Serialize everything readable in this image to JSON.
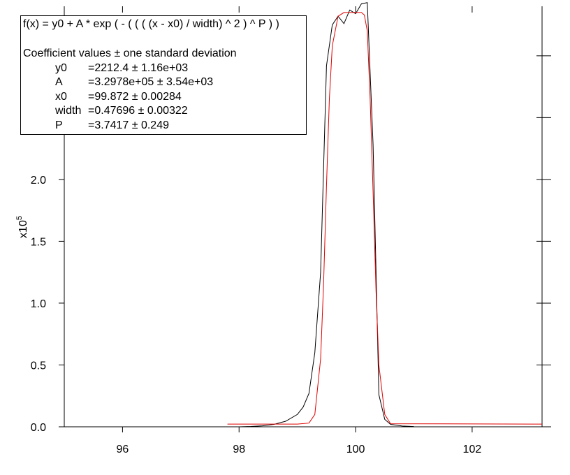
{
  "chart_data": {
    "type": "line",
    "title": "",
    "xlabel": "",
    "ylabel": "",
    "y_multiplier_label": "x10",
    "y_multiplier_exponent": "5",
    "xlim": [
      95.0,
      103.2
    ],
    "ylim": [
      0.0,
      3.4
    ],
    "x_ticks": [
      96,
      98,
      100,
      102
    ],
    "x_tick_labels": [
      "96",
      "98",
      "100",
      "102"
    ],
    "y_ticks": [
      0.0,
      0.5,
      1.0,
      1.5,
      2.0,
      2.5
    ],
    "y_tick_labels": [
      "0.0",
      "0.5",
      "1.0",
      "1.5",
      "2.0",
      "2.5"
    ],
    "grid": false,
    "series": [
      {
        "color": "#000000",
        "x": [
          98.0,
          98.2,
          98.4,
          98.6,
          98.8,
          99.0,
          99.1,
          99.2,
          99.3,
          99.4,
          99.5,
          99.6,
          99.7,
          99.8,
          99.9,
          100.0,
          100.1,
          100.2,
          100.3,
          100.4,
          100.5,
          100.6,
          100.8,
          101.0
        ],
        "y": [
          0.0,
          0.003,
          0.008,
          0.02,
          0.045,
          0.1,
          0.16,
          0.27,
          0.6,
          1.25,
          2.92,
          3.25,
          3.32,
          3.26,
          3.37,
          3.34,
          3.42,
          3.43,
          2.28,
          0.26,
          0.06,
          0.02,
          0.006,
          0.002
        ]
      },
      {
        "color": "#e00000",
        "x": [
          97.8,
          98.5,
          99.0,
          99.2,
          99.3,
          99.4,
          99.45,
          99.5,
          99.55,
          99.6,
          99.7,
          99.8,
          99.9,
          100.0,
          100.1,
          100.15,
          100.2,
          100.25,
          100.3,
          100.35,
          100.4,
          100.5,
          100.6,
          103.2
        ],
        "y": [
          0.022,
          0.022,
          0.022,
          0.03,
          0.1,
          0.55,
          1.15,
          1.95,
          2.65,
          3.08,
          3.32,
          3.35,
          3.35,
          3.35,
          3.35,
          3.33,
          3.2,
          2.65,
          1.9,
          1.1,
          0.5,
          0.1,
          0.025,
          0.022
        ]
      }
    ]
  },
  "legend": {
    "formula": "f(x) = y0 + A * exp ( - ( ( ( (x - x0) / width) ^ 2 ) ^ P ) )",
    "header": "Coefficient values ± one standard deviation",
    "coefficients": [
      {
        "name": "y0",
        "value": "=2212.4 ± 1.16e+03"
      },
      {
        "name": "A",
        "value": "=3.2978e+05 ± 3.54e+03"
      },
      {
        "name": "x0",
        "value": "=99.872 ± 0.00284"
      },
      {
        "name": "width",
        "value": "=0.47696 ± 0.00322"
      },
      {
        "name": "P",
        "value": "=3.7417 ± 0.249"
      }
    ]
  }
}
